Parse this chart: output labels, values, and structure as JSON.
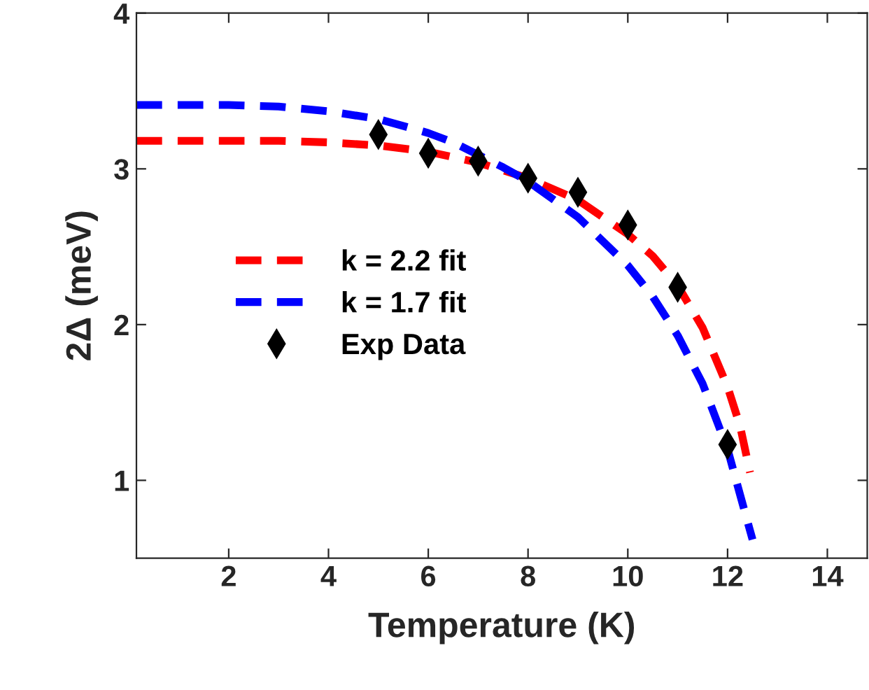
{
  "chart_data": {
    "type": "line",
    "xlabel": "Temperature (K)",
    "ylabel": "2Δ (meV)",
    "xlim": [
      0.15,
      14.8
    ],
    "ylim": [
      0.5,
      4
    ],
    "xticks": [
      2,
      4,
      6,
      8,
      10,
      12,
      14
    ],
    "yticks": [
      1,
      2,
      3,
      4
    ],
    "grid": false,
    "legend": "left",
    "line_style": "dashed",
    "series": [
      {
        "name": "k = 2.2 fit",
        "color": "#ff0000",
        "x": [
          0.15,
          2,
          3,
          4,
          5,
          6,
          7,
          8,
          9,
          10,
          10.5,
          11,
          11.5,
          12,
          12.25,
          12.45
        ],
        "values": [
          3.18,
          3.18,
          3.18,
          3.17,
          3.15,
          3.11,
          3.04,
          2.94,
          2.8,
          2.58,
          2.44,
          2.25,
          1.98,
          1.6,
          1.35,
          1.05
        ]
      },
      {
        "name": "k = 1.7 fit",
        "color": "#0000ff",
        "x": [
          0.15,
          2,
          3,
          4,
          5,
          6,
          6.5,
          7.5,
          8,
          9,
          10,
          10.5,
          11,
          11.5,
          12,
          12.3,
          12.5
        ],
        "values": [
          3.41,
          3.41,
          3.4,
          3.37,
          3.32,
          3.23,
          3.17,
          3.01,
          2.92,
          2.69,
          2.38,
          2.18,
          1.93,
          1.62,
          1.2,
          0.85,
          0.62
        ]
      },
      {
        "name": "Exp Data",
        "type": "scatter",
        "marker": "diamond",
        "color": "#000000",
        "x": [
          5,
          6,
          7,
          8,
          9,
          10,
          11,
          12
        ],
        "values": [
          3.22,
          3.1,
          3.05,
          2.94,
          2.85,
          2.64,
          2.24,
          1.23
        ]
      }
    ]
  }
}
